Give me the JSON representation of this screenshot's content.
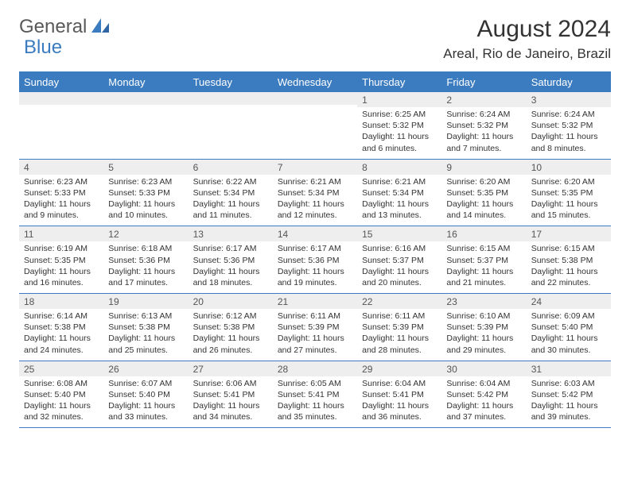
{
  "brand": {
    "part1": "General",
    "part2": "Blue"
  },
  "title": "August 2024",
  "location": "Areal, Rio de Janeiro, Brazil",
  "colors": {
    "header_bg": "#3b7bbf",
    "header_text": "#ffffff",
    "daynum_bg": "#eeeeee",
    "grid_line": "#3b7bbf",
    "body_text": "#333333",
    "logo_gray": "#595959",
    "logo_blue": "#3b7bbf"
  },
  "typography": {
    "title_fontsize": 30,
    "location_fontsize": 17,
    "dayheader_fontsize": 13,
    "daynum_fontsize": 12,
    "content_fontsize": 10.5
  },
  "day_headers": [
    "Sunday",
    "Monday",
    "Tuesday",
    "Wednesday",
    "Thursday",
    "Friday",
    "Saturday"
  ],
  "weeks": [
    [
      {
        "num": "",
        "sunrise": "",
        "sunset": "",
        "daylight": ""
      },
      {
        "num": "",
        "sunrise": "",
        "sunset": "",
        "daylight": ""
      },
      {
        "num": "",
        "sunrise": "",
        "sunset": "",
        "daylight": ""
      },
      {
        "num": "",
        "sunrise": "",
        "sunset": "",
        "daylight": ""
      },
      {
        "num": "1",
        "sunrise": "Sunrise: 6:25 AM",
        "sunset": "Sunset: 5:32 PM",
        "daylight": "Daylight: 11 hours and 6 minutes."
      },
      {
        "num": "2",
        "sunrise": "Sunrise: 6:24 AM",
        "sunset": "Sunset: 5:32 PM",
        "daylight": "Daylight: 11 hours and 7 minutes."
      },
      {
        "num": "3",
        "sunrise": "Sunrise: 6:24 AM",
        "sunset": "Sunset: 5:32 PM",
        "daylight": "Daylight: 11 hours and 8 minutes."
      }
    ],
    [
      {
        "num": "4",
        "sunrise": "Sunrise: 6:23 AM",
        "sunset": "Sunset: 5:33 PM",
        "daylight": "Daylight: 11 hours and 9 minutes."
      },
      {
        "num": "5",
        "sunrise": "Sunrise: 6:23 AM",
        "sunset": "Sunset: 5:33 PM",
        "daylight": "Daylight: 11 hours and 10 minutes."
      },
      {
        "num": "6",
        "sunrise": "Sunrise: 6:22 AM",
        "sunset": "Sunset: 5:34 PM",
        "daylight": "Daylight: 11 hours and 11 minutes."
      },
      {
        "num": "7",
        "sunrise": "Sunrise: 6:21 AM",
        "sunset": "Sunset: 5:34 PM",
        "daylight": "Daylight: 11 hours and 12 minutes."
      },
      {
        "num": "8",
        "sunrise": "Sunrise: 6:21 AM",
        "sunset": "Sunset: 5:34 PM",
        "daylight": "Daylight: 11 hours and 13 minutes."
      },
      {
        "num": "9",
        "sunrise": "Sunrise: 6:20 AM",
        "sunset": "Sunset: 5:35 PM",
        "daylight": "Daylight: 11 hours and 14 minutes."
      },
      {
        "num": "10",
        "sunrise": "Sunrise: 6:20 AM",
        "sunset": "Sunset: 5:35 PM",
        "daylight": "Daylight: 11 hours and 15 minutes."
      }
    ],
    [
      {
        "num": "11",
        "sunrise": "Sunrise: 6:19 AM",
        "sunset": "Sunset: 5:35 PM",
        "daylight": "Daylight: 11 hours and 16 minutes."
      },
      {
        "num": "12",
        "sunrise": "Sunrise: 6:18 AM",
        "sunset": "Sunset: 5:36 PM",
        "daylight": "Daylight: 11 hours and 17 minutes."
      },
      {
        "num": "13",
        "sunrise": "Sunrise: 6:17 AM",
        "sunset": "Sunset: 5:36 PM",
        "daylight": "Daylight: 11 hours and 18 minutes."
      },
      {
        "num": "14",
        "sunrise": "Sunrise: 6:17 AM",
        "sunset": "Sunset: 5:36 PM",
        "daylight": "Daylight: 11 hours and 19 minutes."
      },
      {
        "num": "15",
        "sunrise": "Sunrise: 6:16 AM",
        "sunset": "Sunset: 5:37 PM",
        "daylight": "Daylight: 11 hours and 20 minutes."
      },
      {
        "num": "16",
        "sunrise": "Sunrise: 6:15 AM",
        "sunset": "Sunset: 5:37 PM",
        "daylight": "Daylight: 11 hours and 21 minutes."
      },
      {
        "num": "17",
        "sunrise": "Sunrise: 6:15 AM",
        "sunset": "Sunset: 5:38 PM",
        "daylight": "Daylight: 11 hours and 22 minutes."
      }
    ],
    [
      {
        "num": "18",
        "sunrise": "Sunrise: 6:14 AM",
        "sunset": "Sunset: 5:38 PM",
        "daylight": "Daylight: 11 hours and 24 minutes."
      },
      {
        "num": "19",
        "sunrise": "Sunrise: 6:13 AM",
        "sunset": "Sunset: 5:38 PM",
        "daylight": "Daylight: 11 hours and 25 minutes."
      },
      {
        "num": "20",
        "sunrise": "Sunrise: 6:12 AM",
        "sunset": "Sunset: 5:38 PM",
        "daylight": "Daylight: 11 hours and 26 minutes."
      },
      {
        "num": "21",
        "sunrise": "Sunrise: 6:11 AM",
        "sunset": "Sunset: 5:39 PM",
        "daylight": "Daylight: 11 hours and 27 minutes."
      },
      {
        "num": "22",
        "sunrise": "Sunrise: 6:11 AM",
        "sunset": "Sunset: 5:39 PM",
        "daylight": "Daylight: 11 hours and 28 minutes."
      },
      {
        "num": "23",
        "sunrise": "Sunrise: 6:10 AM",
        "sunset": "Sunset: 5:39 PM",
        "daylight": "Daylight: 11 hours and 29 minutes."
      },
      {
        "num": "24",
        "sunrise": "Sunrise: 6:09 AM",
        "sunset": "Sunset: 5:40 PM",
        "daylight": "Daylight: 11 hours and 30 minutes."
      }
    ],
    [
      {
        "num": "25",
        "sunrise": "Sunrise: 6:08 AM",
        "sunset": "Sunset: 5:40 PM",
        "daylight": "Daylight: 11 hours and 32 minutes."
      },
      {
        "num": "26",
        "sunrise": "Sunrise: 6:07 AM",
        "sunset": "Sunset: 5:40 PM",
        "daylight": "Daylight: 11 hours and 33 minutes."
      },
      {
        "num": "27",
        "sunrise": "Sunrise: 6:06 AM",
        "sunset": "Sunset: 5:41 PM",
        "daylight": "Daylight: 11 hours and 34 minutes."
      },
      {
        "num": "28",
        "sunrise": "Sunrise: 6:05 AM",
        "sunset": "Sunset: 5:41 PM",
        "daylight": "Daylight: 11 hours and 35 minutes."
      },
      {
        "num": "29",
        "sunrise": "Sunrise: 6:04 AM",
        "sunset": "Sunset: 5:41 PM",
        "daylight": "Daylight: 11 hours and 36 minutes."
      },
      {
        "num": "30",
        "sunrise": "Sunrise: 6:04 AM",
        "sunset": "Sunset: 5:42 PM",
        "daylight": "Daylight: 11 hours and 37 minutes."
      },
      {
        "num": "31",
        "sunrise": "Sunrise: 6:03 AM",
        "sunset": "Sunset: 5:42 PM",
        "daylight": "Daylight: 11 hours and 39 minutes."
      }
    ]
  ]
}
